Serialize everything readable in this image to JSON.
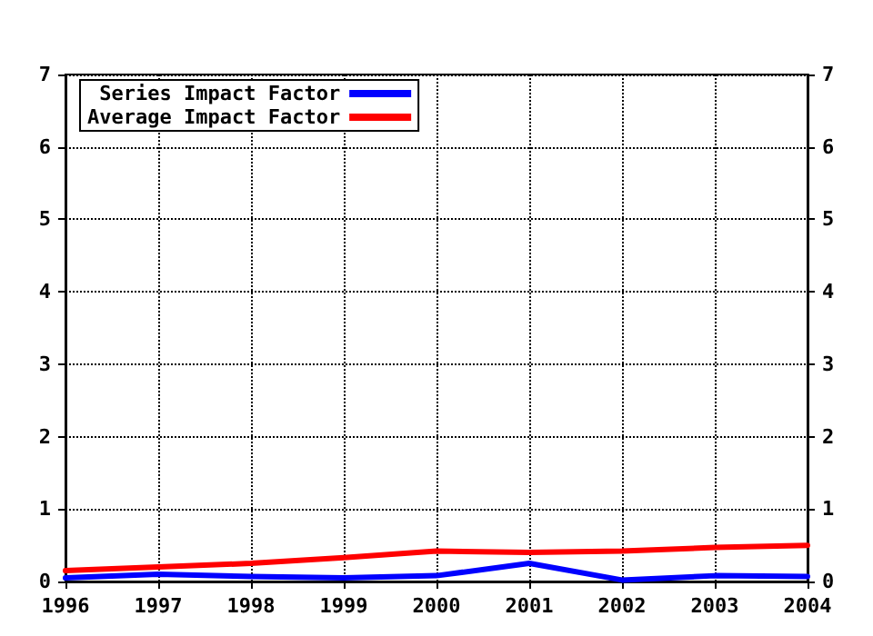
{
  "chart_data": {
    "type": "line",
    "x": [
      1996,
      1997,
      1998,
      1999,
      2000,
      2001,
      2002,
      2003,
      2004
    ],
    "series": [
      {
        "name": "Series Impact Factor",
        "color": "#0000ff",
        "values": [
          0.05,
          0.1,
          0.07,
          0.05,
          0.08,
          0.25,
          0.02,
          0.08,
          0.07
        ]
      },
      {
        "name": "Average Impact Factor",
        "color": "#ff0000",
        "values": [
          0.15,
          0.2,
          0.25,
          0.33,
          0.42,
          0.4,
          0.42,
          0.47,
          0.5
        ]
      }
    ],
    "xlim": [
      1996,
      2004
    ],
    "xticks": [
      1996,
      1997,
      1998,
      1999,
      2000,
      2001,
      2002,
      2003,
      2004
    ],
    "ylim": [
      0,
      7
    ],
    "yticks": [
      0,
      1,
      2,
      3,
      4,
      5,
      6,
      7
    ],
    "y2lim": [
      0,
      7
    ],
    "y2ticks": [
      0,
      1,
      2,
      3,
      4,
      5,
      6,
      7
    ],
    "grid": true,
    "legend": "top left",
    "marker": "none",
    "line_style": "solid"
  }
}
